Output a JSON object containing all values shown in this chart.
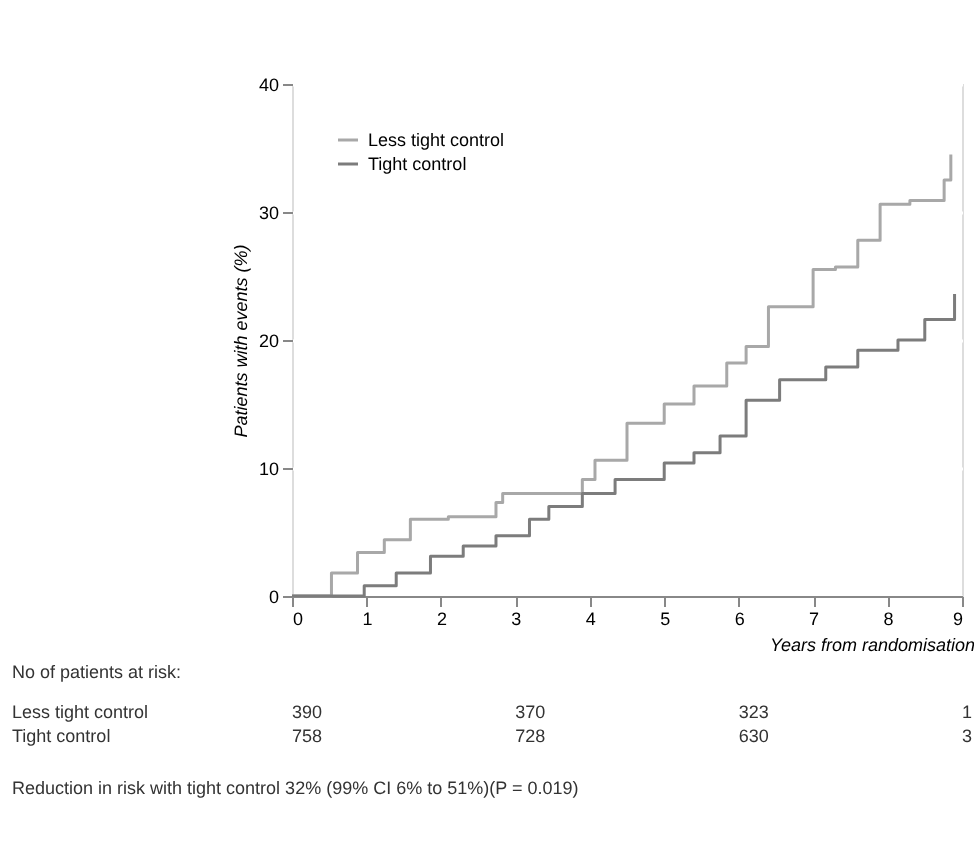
{
  "chart_data": {
    "type": "step",
    "xlabel": "Years from randomisation",
    "ylabel": "Patients with events (%)",
    "series": [
      {
        "name": "Less tight control",
        "color": "#a8a8a8",
        "x": [
          0,
          0.27,
          0.53,
          0.88,
          1.24,
          1.59,
          2.1,
          2.74,
          2.83,
          3.63,
          3.9,
          4.07,
          4.5,
          5,
          5.4,
          5.84,
          6.1,
          6.4,
          7,
          7.3,
          7.6,
          7.9,
          8.3,
          8.76,
          8.85
        ],
        "values": [
          0,
          0,
          1.8,
          3.4,
          4.4,
          6,
          6.2,
          7.3,
          8,
          8,
          9.1,
          10.6,
          13.5,
          15,
          16.4,
          18.2,
          19.5,
          22.6,
          25.5,
          25.7,
          27.8,
          30.6,
          30.9,
          32.5,
          34.5
        ]
      },
      {
        "name": "Tight control",
        "color": "#7c7c7c",
        "x": [
          0,
          0.27,
          0.97,
          1.4,
          1.86,
          2.3,
          2.74,
          3.19,
          3.45,
          3.9,
          4.34,
          5,
          5.4,
          5.75,
          6.1,
          6.55,
          7.17,
          7.6,
          8.14,
          8.5,
          8.9
        ],
        "values": [
          0,
          0,
          0.8,
          1.8,
          3.1,
          3.9,
          4.7,
          6,
          7,
          8,
          9.1,
          10.4,
          11.2,
          12.5,
          15.3,
          16.9,
          17.9,
          19.2,
          20,
          21.6,
          23.6
        ]
      }
    ],
    "xlim": [
      0,
      9
    ],
    "xticks": [
      0,
      1,
      2,
      3,
      4,
      5,
      6,
      7,
      8,
      9
    ],
    "ylim": [
      0,
      40
    ],
    "yticks": [
      0,
      10,
      20,
      30,
      40
    ],
    "grid": "y",
    "legend": "top left",
    "annotations": [
      "No of patients at risk:",
      "Less tight control",
      "390",
      "370",
      "323",
      "1",
      "Tight control",
      "758",
      "728",
      "630",
      "3",
      "Reduction in risk with tight control 32% (99% CI 6% to 51%)(P = 0.019)"
    ]
  }
}
